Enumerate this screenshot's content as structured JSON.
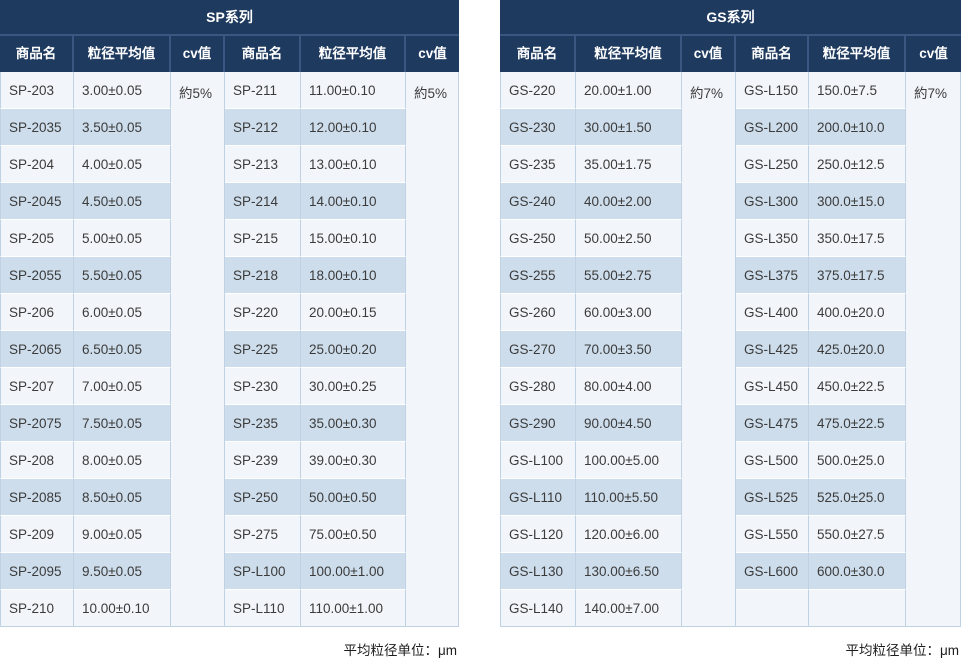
{
  "colors": {
    "header_bg": "#1f3a5f",
    "header_divider": "#3a5781",
    "header_text": "#ffffff",
    "row_light": "#f2f6fa",
    "row_blue": "#cdddec",
    "cell_border": "#c0d1e3",
    "data_text": "#3b3b3b"
  },
  "tables": [
    {
      "title": "SP系列",
      "columns": [
        "商品名",
        "粒径平均值",
        "cv值",
        "商品名",
        "粒径平均值",
        "cv值"
      ],
      "cv_left": "約5%",
      "cv_right": "約5%",
      "rows_left": [
        [
          "SP-203",
          "3.00±0.05"
        ],
        [
          "SP-2035",
          "3.50±0.05"
        ],
        [
          "SP-204",
          "4.00±0.05"
        ],
        [
          "SP-2045",
          "4.50±0.05"
        ],
        [
          "SP-205",
          "5.00±0.05"
        ],
        [
          "SP-2055",
          "5.50±0.05"
        ],
        [
          "SP-206",
          "6.00±0.05"
        ],
        [
          "SP-2065",
          "6.50±0.05"
        ],
        [
          "SP-207",
          "7.00±0.05"
        ],
        [
          "SP-2075",
          "7.50±0.05"
        ],
        [
          "SP-208",
          "8.00±0.05"
        ],
        [
          "SP-2085",
          "8.50±0.05"
        ],
        [
          "SP-209",
          "9.00±0.05"
        ],
        [
          "SP-2095",
          "9.50±0.05"
        ],
        [
          "SP-210",
          "10.00±0.10"
        ]
      ],
      "rows_right": [
        [
          "SP-211",
          "11.00±0.10"
        ],
        [
          "SP-212",
          "12.00±0.10"
        ],
        [
          "SP-213",
          "13.00±0.10"
        ],
        [
          "SP-214",
          "14.00±0.10"
        ],
        [
          "SP-215",
          "15.00±0.10"
        ],
        [
          "SP-218",
          "18.00±0.10"
        ],
        [
          "SP-220",
          "20.00±0.15"
        ],
        [
          "SP-225",
          "25.00±0.20"
        ],
        [
          "SP-230",
          "30.00±0.25"
        ],
        [
          "SP-235",
          "35.00±0.30"
        ],
        [
          "SP-239",
          "39.00±0.30"
        ],
        [
          "SP-250",
          "50.00±0.50"
        ],
        [
          "SP-275",
          "75.00±0.50"
        ],
        [
          "SP-L100",
          "100.00±1.00"
        ],
        [
          "SP-L110",
          "110.00±1.00"
        ]
      ],
      "unit_note": "平均粒径单位：μm"
    },
    {
      "title": "GS系列",
      "columns": [
        "商品名",
        "粒径平均值",
        "cv值",
        "商品名",
        "粒径平均值",
        "cv值"
      ],
      "cv_left": "約7%",
      "cv_right": "約7%",
      "rows_left": [
        [
          "GS-220",
          "20.00±1.00"
        ],
        [
          "GS-230",
          "30.00±1.50"
        ],
        [
          "GS-235",
          "35.00±1.75"
        ],
        [
          "GS-240",
          "40.00±2.00"
        ],
        [
          "GS-250",
          "50.00±2.50"
        ],
        [
          "GS-255",
          "55.00±2.75"
        ],
        [
          "GS-260",
          "60.00±3.00"
        ],
        [
          "GS-270",
          "70.00±3.50"
        ],
        [
          "GS-280",
          "80.00±4.00"
        ],
        [
          "GS-290",
          "90.00±4.50"
        ],
        [
          "GS-L100",
          "100.00±5.00"
        ],
        [
          "GS-L110",
          "110.00±5.50"
        ],
        [
          "GS-L120",
          "120.00±6.00"
        ],
        [
          "GS-L130",
          "130.00±6.50"
        ],
        [
          "GS-L140",
          "140.00±7.00"
        ]
      ],
      "rows_right": [
        [
          "GS-L150",
          "150.0±7.5"
        ],
        [
          "GS-L200",
          "200.0±10.0"
        ],
        [
          "GS-L250",
          "250.0±12.5"
        ],
        [
          "GS-L300",
          "300.0±15.0"
        ],
        [
          "GS-L350",
          "350.0±17.5"
        ],
        [
          "GS-L375",
          "375.0±17.5"
        ],
        [
          "GS-L400",
          "400.0±20.0"
        ],
        [
          "GS-L425",
          "425.0±20.0"
        ],
        [
          "GS-L450",
          "450.0±22.5"
        ],
        [
          "GS-L475",
          "475.0±22.5"
        ],
        [
          "GS-L500",
          "500.0±25.0"
        ],
        [
          "GS-L525",
          "525.0±25.0"
        ],
        [
          "GS-L550",
          "550.0±27.5"
        ],
        [
          "GS-L600",
          "600.0±30.0"
        ]
      ],
      "unit_note": "平均粒径单位：μm"
    }
  ]
}
